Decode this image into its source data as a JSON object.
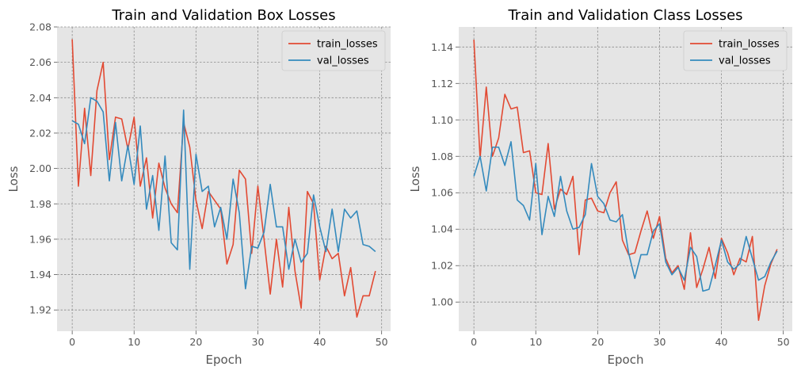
{
  "chart_data": [
    {
      "type": "line",
      "title": "Train and Validation Box Losses",
      "xlabel": "Epoch",
      "ylabel": "Loss",
      "xlim": [
        -2.45,
        51.45
      ],
      "ylim": [
        1.908,
        2.08
      ],
      "xticks": [
        0,
        10,
        20,
        30,
        40,
        50
      ],
      "xtick_labels": [
        "0",
        "10",
        "20",
        "30",
        "40",
        "50"
      ],
      "yticks": [
        1.92,
        1.94,
        1.96,
        1.98,
        2.0,
        2.02,
        2.04,
        2.06,
        2.08
      ],
      "ytick_labels": [
        "1.92",
        "1.94",
        "1.96",
        "1.98",
        "2.00",
        "2.02",
        "2.04",
        "2.06",
        "2.08"
      ],
      "grid": true,
      "legend_position": "top-right",
      "x": [
        0,
        1,
        2,
        3,
        4,
        5,
        6,
        7,
        8,
        9,
        10,
        11,
        12,
        13,
        14,
        15,
        16,
        17,
        18,
        19,
        20,
        21,
        22,
        23,
        24,
        25,
        26,
        27,
        28,
        29,
        30,
        31,
        32,
        33,
        34,
        35,
        36,
        37,
        38,
        39,
        40,
        41,
        42,
        43,
        44,
        45,
        46,
        47,
        48,
        49
      ],
      "series": [
        {
          "name": "train_losses",
          "color": "#E24A33",
          "values": [
            2.073,
            1.99,
            2.034,
            1.996,
            2.044,
            2.06,
            2.005,
            2.029,
            2.028,
            2.011,
            2.029,
            1.99,
            2.006,
            1.972,
            2.003,
            1.989,
            1.98,
            1.975,
            2.026,
            2.012,
            1.982,
            1.966,
            1.987,
            1.982,
            1.977,
            1.946,
            1.957,
            1.999,
            1.994,
            1.952,
            1.99,
            1.96,
            1.929,
            1.96,
            1.933,
            1.978,
            1.942,
            1.921,
            1.987,
            1.98,
            1.937,
            1.956,
            1.949,
            1.952,
            1.928,
            1.944,
            1.916,
            1.928,
            1.928,
            1.942
          ]
        },
        {
          "name": "val_losses",
          "color": "#348ABD",
          "values": [
            2.027,
            2.025,
            2.014,
            2.04,
            2.038,
            2.032,
            1.993,
            2.026,
            1.993,
            2.013,
            1.991,
            2.024,
            1.977,
            1.996,
            1.965,
            2.007,
            1.958,
            1.954,
            2.033,
            1.943,
            2.008,
            1.987,
            1.99,
            1.967,
            1.978,
            1.96,
            1.994,
            1.975,
            1.932,
            1.956,
            1.955,
            1.964,
            1.991,
            1.967,
            1.967,
            1.943,
            1.96,
            1.947,
            1.952,
            1.985,
            1.967,
            1.953,
            1.977,
            1.953,
            1.977,
            1.972,
            1.976,
            1.957,
            1.956,
            1.953
          ]
        }
      ]
    },
    {
      "type": "line",
      "title": "Train and Validation Class Losses",
      "xlabel": "Epoch",
      "ylabel": "Loss",
      "xlim": [
        -2.45,
        51.45
      ],
      "ylim": [
        0.984,
        1.151
      ],
      "xticks": [
        0,
        10,
        20,
        30,
        40,
        50
      ],
      "xtick_labels": [
        "0",
        "10",
        "20",
        "30",
        "40",
        "50"
      ],
      "yticks": [
        1.0,
        1.02,
        1.04,
        1.06,
        1.08,
        1.1,
        1.12,
        1.14
      ],
      "ytick_labels": [
        "1.00",
        "1.02",
        "1.04",
        "1.06",
        "1.08",
        "1.10",
        "1.12",
        "1.14"
      ],
      "grid": true,
      "legend_position": "top-right",
      "x": [
        0,
        1,
        2,
        3,
        4,
        5,
        6,
        7,
        8,
        9,
        10,
        11,
        12,
        13,
        14,
        15,
        16,
        17,
        18,
        19,
        20,
        21,
        22,
        23,
        24,
        25,
        26,
        27,
        28,
        29,
        30,
        31,
        32,
        33,
        34,
        35,
        36,
        37,
        38,
        39,
        40,
        41,
        42,
        43,
        44,
        45,
        46,
        47,
        48,
        49
      ],
      "series": [
        {
          "name": "train_losses",
          "color": "#E24A33",
          "values": [
            1.144,
            1.079,
            1.118,
            1.08,
            1.09,
            1.114,
            1.106,
            1.107,
            1.082,
            1.083,
            1.06,
            1.059,
            1.087,
            1.051,
            1.062,
            1.059,
            1.069,
            1.026,
            1.056,
            1.057,
            1.05,
            1.049,
            1.06,
            1.066,
            1.034,
            1.026,
            1.027,
            1.039,
            1.05,
            1.035,
            1.047,
            1.024,
            1.016,
            1.02,
            1.007,
            1.038,
            1.008,
            1.018,
            1.03,
            1.013,
            1.035,
            1.027,
            1.015,
            1.024,
            1.022,
            1.036,
            0.99,
            1.009,
            1.021,
            1.029
          ]
        },
        {
          "name": "val_losses",
          "color": "#348ABD",
          "values": [
            1.069,
            1.08,
            1.061,
            1.085,
            1.085,
            1.075,
            1.088,
            1.056,
            1.053,
            1.045,
            1.076,
            1.037,
            1.058,
            1.047,
            1.069,
            1.05,
            1.04,
            1.041,
            1.048,
            1.076,
            1.058,
            1.054,
            1.045,
            1.044,
            1.048,
            1.027,
            1.013,
            1.026,
            1.026,
            1.039,
            1.043,
            1.022,
            1.015,
            1.019,
            1.012,
            1.03,
            1.025,
            1.006,
            1.007,
            1.02,
            1.034,
            1.022,
            1.018,
            1.021,
            1.036,
            1.024,
            1.012,
            1.014,
            1.022,
            1.028
          ]
        }
      ]
    }
  ]
}
